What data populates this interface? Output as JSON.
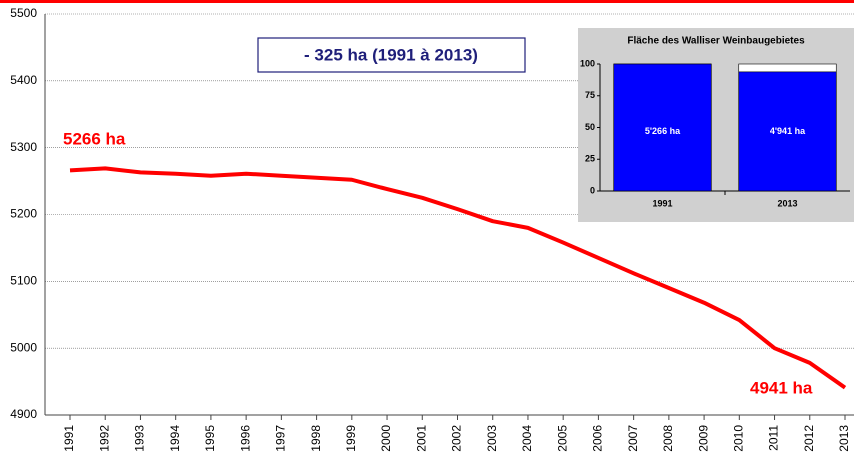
{
  "chart_data": [
    {
      "type": "line",
      "annotations": [
        "- 325 ha (1991 à 2013)",
        "5266 ha",
        "4941 ha"
      ],
      "categories": [
        "1991",
        "1992",
        "1993",
        "1994",
        "1995",
        "1996",
        "1997",
        "1998",
        "1999",
        "2000",
        "2001",
        "2002",
        "2003",
        "2004",
        "2005",
        "2006",
        "2007",
        "2008",
        "2009",
        "2010",
        "2011",
        "2012",
        "2013"
      ],
      "values": [
        5266,
        5269,
        5263,
        5261,
        5258,
        5261,
        5258,
        5255,
        5252,
        5238,
        5225,
        5208,
        5190,
        5180,
        5158,
        5135,
        5112,
        5090,
        5068,
        5042,
        5000,
        4978,
        4941
      ],
      "color": "#ff0000",
      "ylim": [
        4900,
        5500
      ],
      "yticks": [
        4900,
        5000,
        5100,
        5200,
        5300,
        5400,
        5500
      ],
      "grid": true
    },
    {
      "type": "bar",
      "title": "Fläche des Walliser Weinbaugebietes",
      "categories": [
        "1991",
        "2013"
      ],
      "values": [
        100,
        93.8
      ],
      "annotations": [
        "5'266 ha",
        "4'941 ha"
      ],
      "color": "#0000ff",
      "ylim": [
        0,
        100
      ],
      "yticks": [
        0,
        25,
        50,
        75,
        100
      ]
    }
  ]
}
